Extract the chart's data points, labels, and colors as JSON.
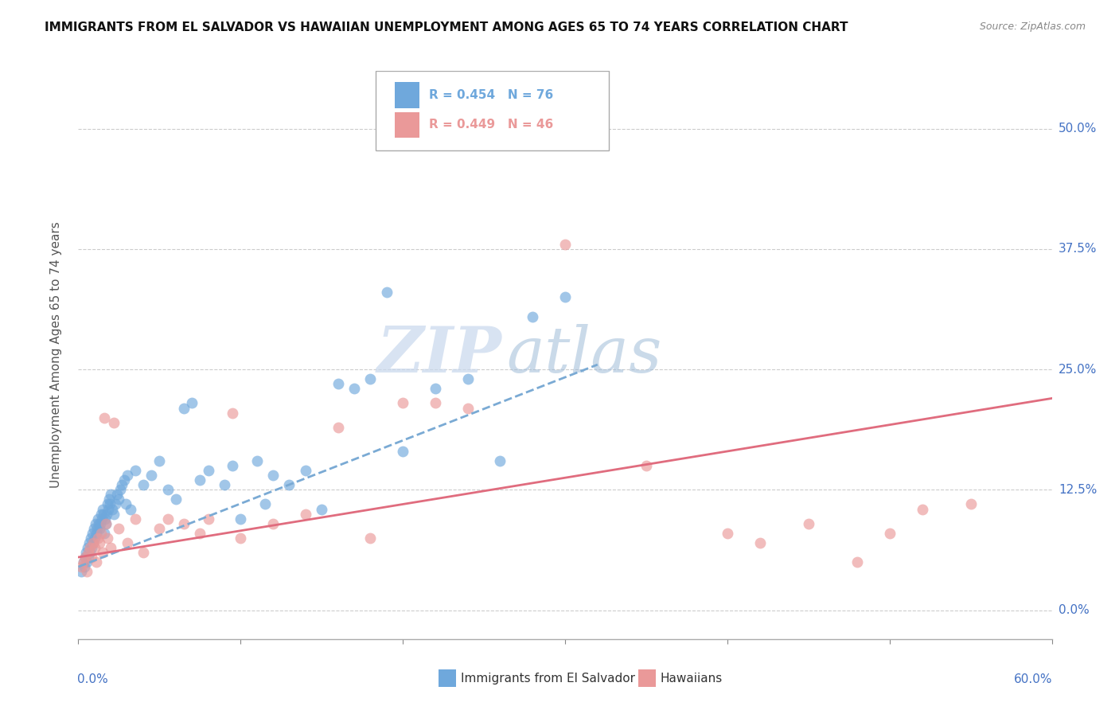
{
  "title": "IMMIGRANTS FROM EL SALVADOR VS HAWAIIAN UNEMPLOYMENT AMONG AGES 65 TO 74 YEARS CORRELATION CHART",
  "source": "Source: ZipAtlas.com",
  "ylabel": "Unemployment Among Ages 65 to 74 years",
  "ytick_labels": [
    "0.0%",
    "12.5%",
    "25.0%",
    "37.5%",
    "50.0%"
  ],
  "ytick_values": [
    0.0,
    12.5,
    25.0,
    37.5,
    50.0
  ],
  "xlim": [
    0.0,
    60.0
  ],
  "ylim": [
    -3.0,
    56.0
  ],
  "legend_blue_r": "R = 0.454",
  "legend_blue_n": "N = 76",
  "legend_pink_r": "R = 0.449",
  "legend_pink_n": "N = 46",
  "legend_label_blue": "Immigrants from El Salvador",
  "legend_label_pink": "Hawaiians",
  "blue_color": "#6fa8dc",
  "pink_color": "#ea9999",
  "trendline_blue_color": "#7aaad4",
  "trendline_pink_color": "#e06c7e",
  "watermark_zip": "ZIP",
  "watermark_atlas": "atlas",
  "blue_scatter_x": [
    0.2,
    0.3,
    0.35,
    0.4,
    0.45,
    0.5,
    0.55,
    0.6,
    0.65,
    0.7,
    0.75,
    0.8,
    0.85,
    0.9,
    0.95,
    1.0,
    1.05,
    1.1,
    1.15,
    1.2,
    1.25,
    1.3,
    1.35,
    1.4,
    1.45,
    1.5,
    1.55,
    1.6,
    1.65,
    1.7,
    1.75,
    1.8,
    1.85,
    1.9,
    1.95,
    2.0,
    2.1,
    2.2,
    2.3,
    2.4,
    2.5,
    2.6,
    2.7,
    2.8,
    2.9,
    3.0,
    3.2,
    3.5,
    4.0,
    4.5,
    5.0,
    5.5,
    6.0,
    6.5,
    7.0,
    7.5,
    8.0,
    9.0,
    10.0,
    11.0,
    12.0,
    13.0,
    14.0,
    15.0,
    16.0,
    17.0,
    18.0,
    20.0,
    22.0,
    24.0,
    26.0,
    28.0,
    30.0,
    19.0,
    11.5,
    9.5
  ],
  "blue_scatter_y": [
    4.0,
    5.0,
    4.5,
    5.5,
    6.0,
    5.0,
    6.5,
    5.5,
    7.0,
    6.0,
    7.5,
    6.5,
    8.0,
    7.0,
    8.5,
    7.5,
    9.0,
    8.0,
    8.5,
    9.5,
    9.0,
    8.5,
    9.0,
    10.0,
    9.5,
    10.5,
    10.0,
    8.0,
    9.5,
    9.0,
    10.0,
    11.0,
    10.5,
    11.5,
    11.0,
    12.0,
    10.5,
    10.0,
    11.0,
    12.0,
    11.5,
    12.5,
    13.0,
    13.5,
    11.0,
    14.0,
    10.5,
    14.5,
    13.0,
    14.0,
    15.5,
    12.5,
    11.5,
    21.0,
    21.5,
    13.5,
    14.5,
    13.0,
    9.5,
    15.5,
    14.0,
    13.0,
    14.5,
    10.5,
    23.5,
    23.0,
    24.0,
    16.5,
    23.0,
    24.0,
    15.5,
    30.5,
    32.5,
    33.0,
    11.0,
    15.0
  ],
  "pink_scatter_x": [
    0.2,
    0.3,
    0.4,
    0.5,
    0.6,
    0.7,
    0.8,
    0.9,
    1.0,
    1.1,
    1.2,
    1.3,
    1.4,
    1.5,
    1.6,
    1.7,
    1.8,
    2.0,
    2.2,
    2.5,
    3.0,
    3.5,
    5.0,
    6.5,
    7.5,
    9.5,
    10.0,
    12.0,
    14.0,
    16.0,
    18.0,
    22.0,
    24.0,
    30.0,
    35.0,
    40.0,
    42.0,
    45.0,
    48.0,
    50.0,
    52.0,
    55.0,
    20.0,
    4.0,
    5.5,
    8.0
  ],
  "pink_scatter_y": [
    4.5,
    5.0,
    5.5,
    4.0,
    6.0,
    6.5,
    5.5,
    7.0,
    6.5,
    5.0,
    7.5,
    7.0,
    8.0,
    6.0,
    20.0,
    9.0,
    7.5,
    6.5,
    19.5,
    8.5,
    7.0,
    9.5,
    8.5,
    9.0,
    8.0,
    20.5,
    7.5,
    9.0,
    10.0,
    19.0,
    7.5,
    21.5,
    21.0,
    38.0,
    15.0,
    8.0,
    7.0,
    9.0,
    5.0,
    8.0,
    10.5,
    11.0,
    21.5,
    6.0,
    9.5,
    9.5
  ],
  "blue_trend_x": [
    0.0,
    32.0
  ],
  "blue_trend_y": [
    4.5,
    25.5
  ],
  "pink_trend_x": [
    0.0,
    60.0
  ],
  "pink_trend_y": [
    5.5,
    22.0
  ],
  "grid_color": "#cccccc",
  "bg_color": "#ffffff",
  "title_fontsize": 11,
  "tick_label_color": "#4472c4",
  "pink_legend_color": "#ea9999"
}
